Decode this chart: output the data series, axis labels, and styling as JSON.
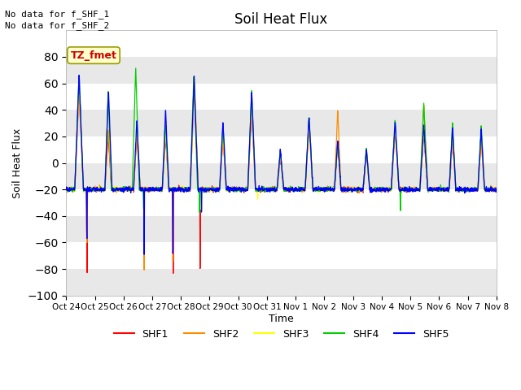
{
  "title": "Soil Heat Flux",
  "ylabel": "Soil Heat Flux",
  "xlabel": "Time",
  "ylim": [
    -100,
    100
  ],
  "colors": {
    "SHF1": "#ff0000",
    "SHF2": "#ff8c00",
    "SHF3": "#ffff00",
    "SHF4": "#00cc00",
    "SHF5": "#0000ff"
  },
  "annotation_text": "TZ_fmet",
  "no_data_text1": "No data for f_SHF_1",
  "no_data_text2": "No data for f_SHF_2",
  "xtick_labels": [
    "Oct 24",
    "Oct 25",
    "Oct 26",
    "Oct 27",
    "Oct 28",
    "Oct 29",
    "Oct 30",
    "Oct 31",
    "Nov 1",
    "Nov 2",
    "Nov 3",
    "Nov 4",
    "Nov 5",
    "Nov 6",
    "Nov 7",
    "Nov 8"
  ],
  "yticks": [
    -100,
    -80,
    -60,
    -40,
    -20,
    0,
    20,
    40,
    60,
    80
  ],
  "bg_bands": [
    [
      80,
      60,
      "#d8d8d8"
    ],
    [
      40,
      20,
      "#d8d8d8"
    ],
    [
      0,
      -20,
      "#d8d8d8"
    ],
    [
      -40,
      -60,
      "#d8d8d8"
    ],
    [
      -80,
      -100,
      "#d8d8d8"
    ]
  ]
}
